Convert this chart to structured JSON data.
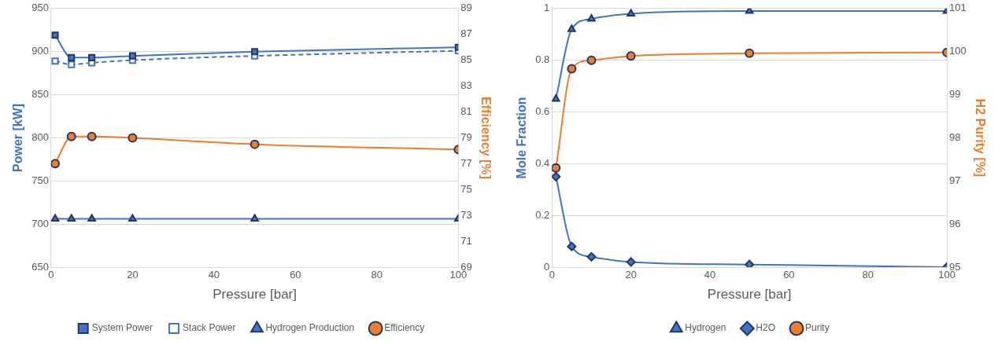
{
  "chart_data": [
    {
      "type": "line",
      "x": [
        1,
        5,
        10,
        20,
        50,
        100
      ],
      "xlabel": "Pressure [bar]",
      "ylabel": "Power [kW]",
      "y2label": "Efficiency [%]",
      "xlim": [
        0,
        100
      ],
      "xticks": [
        0,
        20,
        40,
        60,
        80,
        100
      ],
      "ylim": [
        650,
        950
      ],
      "yticks": [
        650,
        700,
        750,
        800,
        850,
        900,
        950
      ],
      "y2lim": [
        69,
        89
      ],
      "y2ticks": [
        69,
        71,
        73,
        75,
        77,
        79,
        81,
        83,
        85,
        87,
        89
      ],
      "grid": "y",
      "legend": "bottom",
      "series": [
        {
          "name": "System Power",
          "color": "#4472c4",
          "marker": "square",
          "values": [
            919,
            893,
            893,
            895,
            900,
            905
          ]
        },
        {
          "name": "Stack Power",
          "color": "#4472c4",
          "marker": "square",
          "line_style": "dashed",
          "values": [
            889,
            885,
            887,
            890,
            895,
            901
          ]
        },
        {
          "name": "Hydrogen Production",
          "color": "#4472c4",
          "marker": "triangle",
          "values": [
            706,
            706,
            706,
            706,
            706,
            706
          ]
        },
        {
          "name": "Efficiency",
          "color": "#ed7d31",
          "marker": "circle",
          "axis": "y2",
          "values": [
            77.0,
            79.1,
            79.1,
            79.0,
            78.5,
            78.1
          ]
        }
      ]
    },
    {
      "type": "line",
      "x": [
        1,
        5,
        10,
        20,
        50,
        100
      ],
      "xlabel": "Pressure [bar]",
      "ylabel": "Mole Fraction",
      "y2label": "H2 Purity [%]",
      "xlim": [
        0,
        100
      ],
      "xticks": [
        0,
        20,
        40,
        60,
        80,
        100
      ],
      "ylim": [
        0,
        1
      ],
      "yticks": [
        0,
        0.2,
        0.4,
        0.6,
        0.8,
        1
      ],
      "y2lim": [
        95,
        101
      ],
      "y2ticks": [
        95,
        96,
        97,
        98,
        99,
        100,
        101
      ],
      "grid": "y",
      "legend": "bottom",
      "series": [
        {
          "name": "Hydrogen",
          "color": "#4472c4",
          "marker": "triangle",
          "values": [
            0.65,
            0.92,
            0.96,
            0.98,
            0.99,
            0.99
          ]
        },
        {
          "name": "H2O",
          "color": "#4472c4",
          "marker": "diamond",
          "values": [
            0.35,
            0.08,
            0.04,
            0.02,
            0.01,
            0
          ]
        },
        {
          "name": "Purity",
          "color": "#ed7d31",
          "marker": "circle",
          "axis": "y2",
          "values": [
            97.3,
            99.6,
            99.8,
            99.9,
            99.96,
            99.98
          ]
        }
      ]
    }
  ]
}
